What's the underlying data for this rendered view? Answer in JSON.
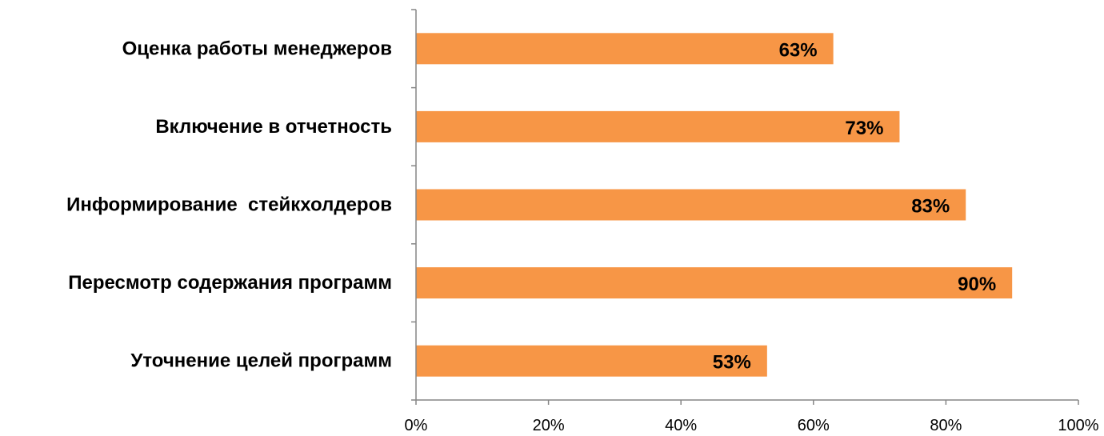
{
  "chart_data": {
    "type": "bar",
    "orientation": "horizontal",
    "categories": [
      "Оценка работы менеджеров",
      "Включение в отчетность",
      "Информирование  стейкхолдеров",
      "Пересмотр содержания программ",
      "Уточнение целей программ"
    ],
    "values": [
      63,
      73,
      83,
      90,
      53
    ],
    "data_labels": [
      "63%",
      "73%",
      "83%",
      "90%",
      "53%"
    ],
    "xlim": [
      0,
      100
    ],
    "x_ticks": [
      0,
      20,
      40,
      60,
      80,
      100
    ],
    "x_tick_labels": [
      "0%",
      "20%",
      "40%",
      "60%",
      "80%",
      "100%"
    ],
    "grid": false,
    "legend": "none",
    "bar_color": "#F79646",
    "axis_color": "#868686"
  }
}
